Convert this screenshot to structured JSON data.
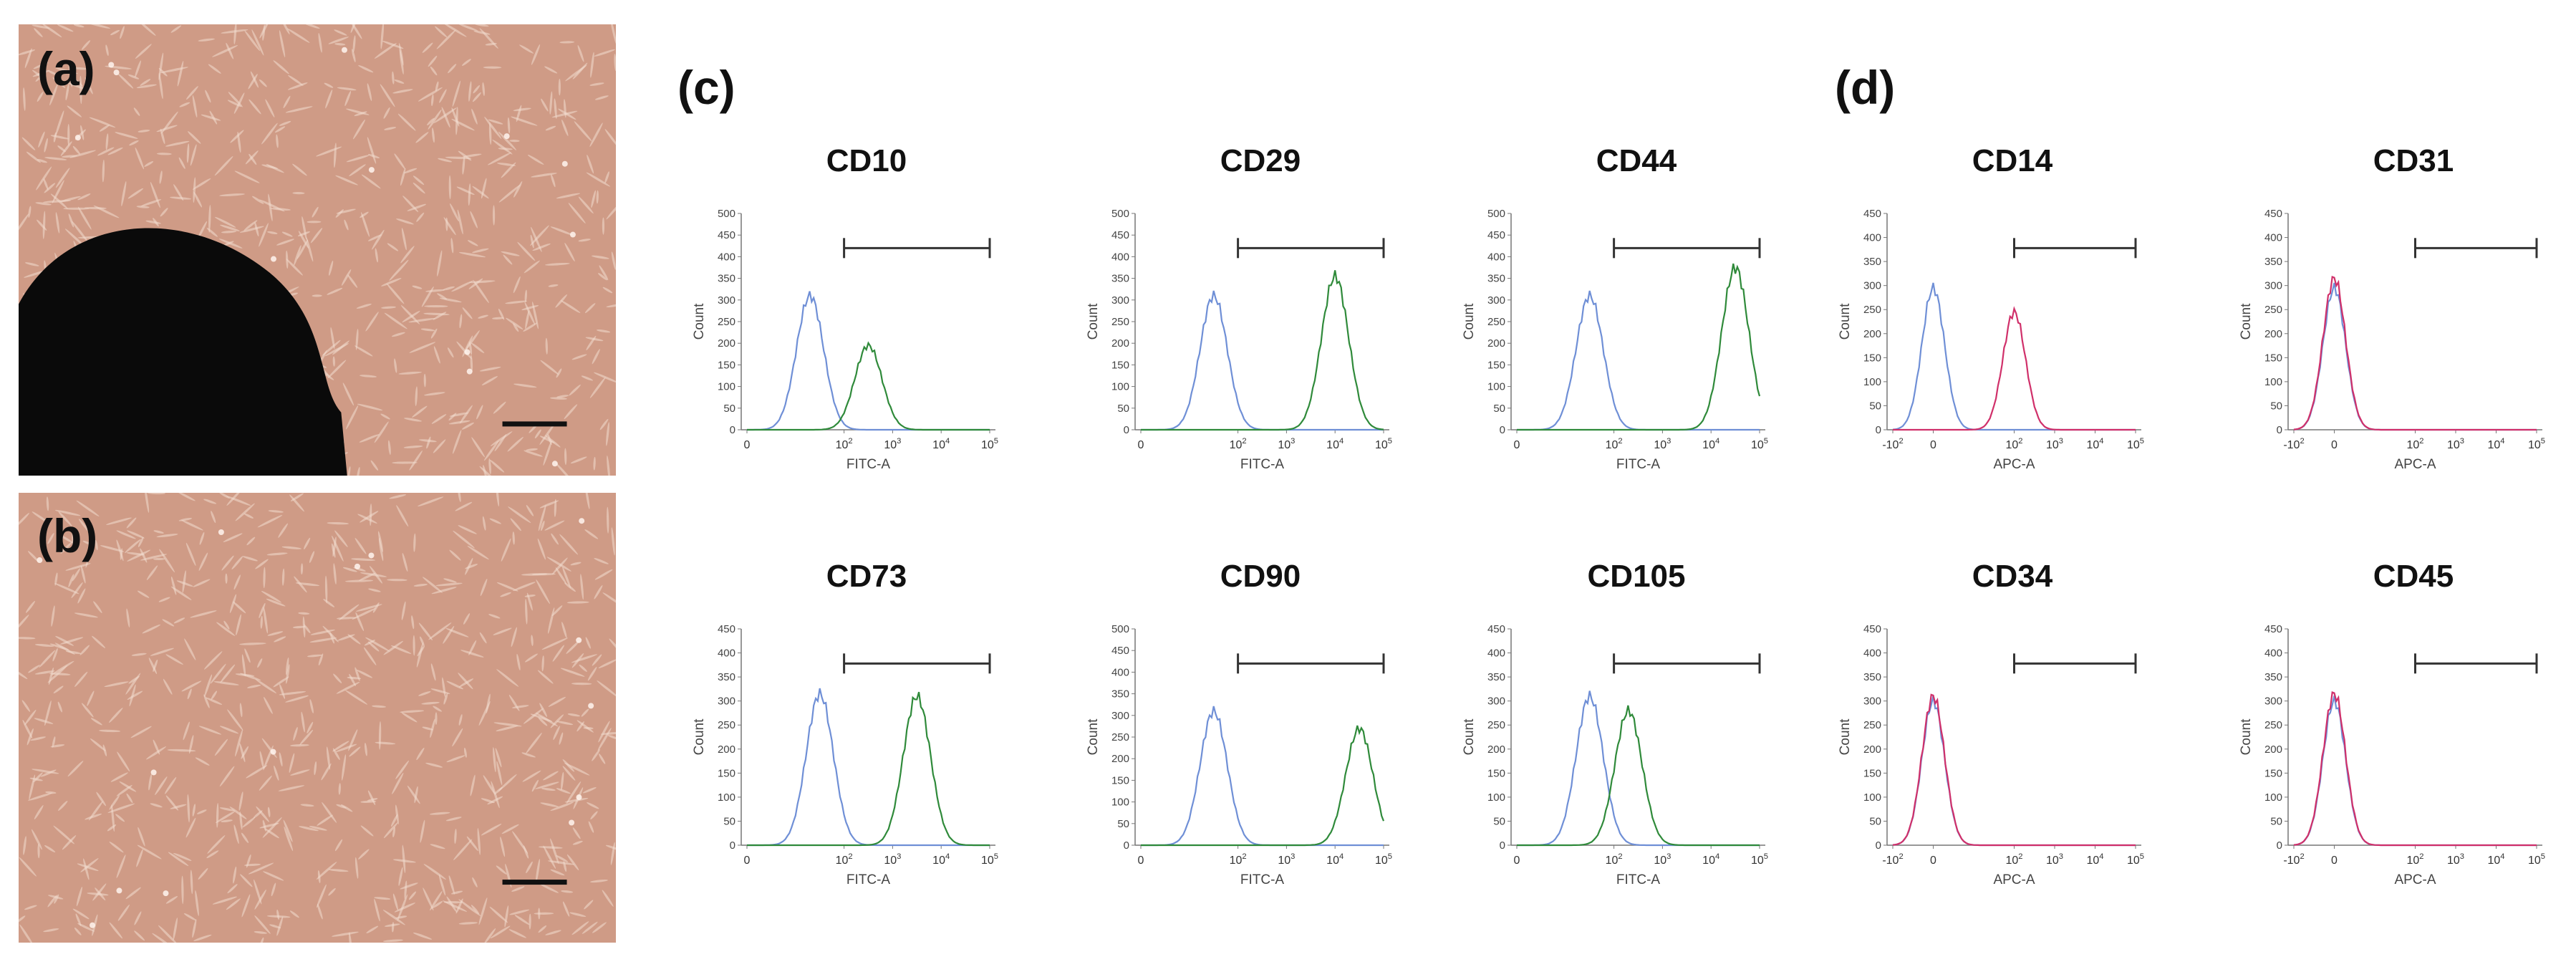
{
  "panel_labels": {
    "a": "(a)",
    "b": "(b)",
    "c": "(c)",
    "d": "(d)"
  },
  "colors": {
    "isotype": "#6f8fd6",
    "fitc": "#2f8a3a",
    "apc": "#d0306a",
    "gate": "#333333",
    "micro_bg": "#cf9b86",
    "cell": "#f3dccf",
    "colony": "#0a0a0a"
  },
  "chart_data": [
    {
      "type": "area",
      "title": "CD10",
      "xlabel": "FITC-A",
      "ylabel": "Count",
      "ylim": [
        0,
        500
      ],
      "ylim_ticks": [
        0,
        50,
        100,
        150,
        200,
        250,
        300,
        350,
        400,
        450,
        500
      ],
      "x_ticks": [
        "0",
        "10^2",
        "10^3",
        "10^4",
        "10^5"
      ],
      "gate_range": [
        "10^2",
        "10^5"
      ],
      "series": [
        {
          "color": "isotype",
          "peak_x": "~10^1.3",
          "peak_count": 310
        },
        {
          "color": "fitc",
          "peak_x": "~10^2.5",
          "peak_count": 195
        }
      ]
    },
    {
      "type": "area",
      "title": "CD29",
      "xlabel": "FITC-A",
      "ylabel": "Count",
      "ylim": [
        0,
        500
      ],
      "ylim_ticks": [
        0,
        50,
        100,
        150,
        200,
        250,
        300,
        350,
        400,
        450,
        500
      ],
      "x_ticks": [
        "0",
        "10^2",
        "10^3",
        "10^4",
        "10^5"
      ],
      "gate_range": [
        "10^2",
        "10^5"
      ],
      "series": [
        {
          "color": "isotype",
          "peak_x": "~10^1.5",
          "peak_count": 310
        },
        {
          "color": "fitc",
          "peak_x": "~10^4",
          "peak_count": 355
        }
      ]
    },
    {
      "type": "area",
      "title": "CD44",
      "xlabel": "FITC-A",
      "ylabel": "Count",
      "ylim": [
        0,
        500
      ],
      "ylim_ticks": [
        0,
        50,
        100,
        150,
        200,
        250,
        300,
        350,
        400,
        450,
        500
      ],
      "x_ticks": [
        "0",
        "10^2",
        "10^3",
        "10^4",
        "10^5"
      ],
      "gate_range": [
        "10^2",
        "10^5"
      ],
      "series": [
        {
          "color": "isotype",
          "peak_x": "~10^1.5",
          "peak_count": 310
        },
        {
          "color": "fitc",
          "peak_x": "~10^4.5",
          "peak_count": 375
        }
      ]
    },
    {
      "type": "area",
      "title": "CD73",
      "xlabel": "FITC-A",
      "ylabel": "Count",
      "ylim": [
        0,
        450
      ],
      "ylim_ticks": [
        0,
        50,
        100,
        150,
        200,
        250,
        300,
        350,
        400,
        450
      ],
      "x_ticks": [
        "0",
        "10^2",
        "10^3",
        "10^4",
        "10^5"
      ],
      "gate_range": [
        "10^2",
        "10^5"
      ],
      "series": [
        {
          "color": "isotype",
          "peak_x": "~10^1.5",
          "peak_count": 315
        },
        {
          "color": "fitc",
          "peak_x": "~10^3.5",
          "peak_count": 310
        }
      ]
    },
    {
      "type": "area",
      "title": "CD90",
      "xlabel": "FITC-A",
      "ylabel": "Count",
      "ylim": [
        0,
        500
      ],
      "ylim_ticks": [
        0,
        50,
        100,
        150,
        200,
        250,
        300,
        350,
        400,
        450,
        500
      ],
      "x_ticks": [
        "0",
        "10^2",
        "10^3",
        "10^4",
        "10^5"
      ],
      "gate_range": [
        "10^2",
        "10^5"
      ],
      "series": [
        {
          "color": "isotype",
          "peak_x": "~10^1.5",
          "peak_count": 310
        },
        {
          "color": "fitc",
          "peak_x": "~10^4.5",
          "peak_count": 270
        }
      ]
    },
    {
      "type": "area",
      "title": "CD105",
      "xlabel": "FITC-A",
      "ylabel": "Count",
      "ylim": [
        0,
        450
      ],
      "ylim_ticks": [
        0,
        50,
        100,
        150,
        200,
        250,
        300,
        350,
        400,
        450
      ],
      "x_ticks": [
        "0",
        "10^2",
        "10^3",
        "10^4",
        "10^5"
      ],
      "gate_range": [
        "10^2",
        "10^5"
      ],
      "series": [
        {
          "color": "isotype",
          "peak_x": "~10^1.5",
          "peak_count": 310
        },
        {
          "color": "fitc",
          "peak_x": "~10^2.3",
          "peak_count": 280
        }
      ]
    },
    {
      "type": "area",
      "title": "CD14",
      "xlabel": "APC-A",
      "ylabel": "Count",
      "ylim": [
        0,
        450
      ],
      "ylim_ticks": [
        0,
        50,
        100,
        150,
        200,
        250,
        300,
        350,
        400,
        450
      ],
      "x_ticks": [
        "-10^2",
        "0",
        "10^2",
        "10^3",
        "10^4",
        "10^5"
      ],
      "gate_range": [
        "10^2",
        "10^5"
      ],
      "series": [
        {
          "color": "isotype",
          "peak_x": "~0",
          "peak_count": 295
        },
        {
          "color": "apc",
          "peak_x": "~10^2",
          "peak_count": 245
        }
      ]
    },
    {
      "type": "area",
      "title": "CD31",
      "xlabel": "APC-A",
      "ylabel": "Count",
      "ylim": [
        0,
        450
      ],
      "ylim_ticks": [
        0,
        50,
        100,
        150,
        200,
        250,
        300,
        350,
        400,
        450
      ],
      "x_ticks": [
        "-10^2",
        "0",
        "10^2",
        "10^3",
        "10^4",
        "10^5"
      ],
      "gate_range": [
        "10^2",
        "10^5"
      ],
      "series": [
        {
          "color": "isotype",
          "peak_x": "~0",
          "peak_count": 295
        },
        {
          "color": "apc",
          "peak_x": "~0",
          "peak_count": 315
        }
      ]
    },
    {
      "type": "area",
      "title": "CD34",
      "xlabel": "APC-A",
      "ylabel": "Count",
      "ylim": [
        0,
        450
      ],
      "ylim_ticks": [
        0,
        50,
        100,
        150,
        200,
        250,
        300,
        350,
        400,
        450
      ],
      "x_ticks": [
        "-10^2",
        "0",
        "10^2",
        "10^3",
        "10^4",
        "10^5"
      ],
      "gate_range": [
        "10^2",
        "10^5"
      ],
      "series": [
        {
          "color": "isotype",
          "peak_x": "~0",
          "peak_count": 300
        },
        {
          "color": "apc",
          "peak_x": "~0",
          "peak_count": 310
        }
      ]
    },
    {
      "type": "area",
      "title": "CD45",
      "xlabel": "APC-A",
      "ylabel": "Count",
      "ylim": [
        0,
        450
      ],
      "ylim_ticks": [
        0,
        50,
        100,
        150,
        200,
        250,
        300,
        350,
        400,
        450
      ],
      "x_ticks": [
        "-10^2",
        "0",
        "10^2",
        "10^3",
        "10^4",
        "10^5"
      ],
      "gate_range": [
        "10^2",
        "10^5"
      ],
      "series": [
        {
          "color": "isotype",
          "peak_x": "~0",
          "peak_count": 300
        },
        {
          "color": "apc",
          "peak_x": "~0",
          "peak_count": 315
        }
      ]
    }
  ]
}
